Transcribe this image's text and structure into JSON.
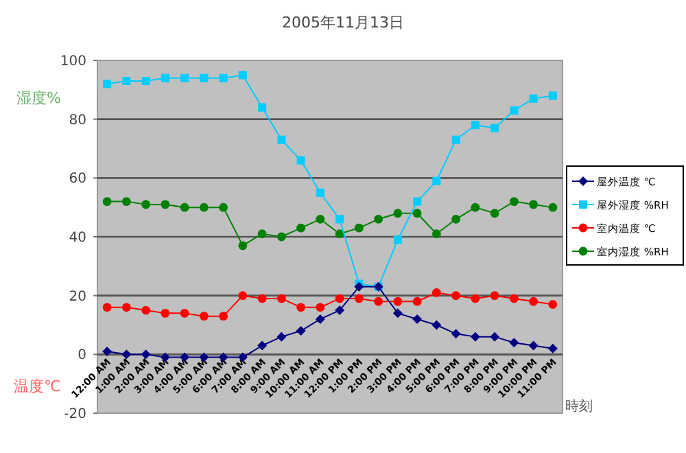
{
  "chart_data": {
    "type": "line",
    "title": "2005年11月13日",
    "xlabel": "時刻",
    "ylabel": "温度℃",
    "annotations": [
      "湿度%"
    ],
    "categories": [
      "12:00 AM",
      "1:00 AM",
      "2:00 AM",
      "3:00 AM",
      "4:00 AM",
      "5:00 AM",
      "6:00 AM",
      "7:00 AM",
      "8:00 AM",
      "9:00 AM",
      "10:00 AM",
      "11:00 AM",
      "12:00 PM",
      "1:00 PM",
      "2:00 PM",
      "3:00 PM",
      "4:00 PM",
      "5:00 PM",
      "6:00 PM",
      "7:00 PM",
      "8:00 PM",
      "9:00 PM",
      "10:00 PM",
      "11:00 PM"
    ],
    "series": [
      {
        "name": "屋外温度 ℃",
        "color": "#000080",
        "marker": "diamond",
        "values": [
          1,
          0,
          0,
          -1,
          -1,
          -1,
          -1,
          -1,
          3,
          6,
          8,
          12,
          15,
          23,
          23,
          14,
          12,
          10,
          7,
          6,
          6,
          4,
          3,
          2
        ]
      },
      {
        "name": "屋外湿度 %RH",
        "color": "#00ccff",
        "marker": "square",
        "values": [
          92,
          93,
          93,
          94,
          94,
          94,
          94,
          95,
          84,
          73,
          66,
          55,
          46,
          24,
          23,
          39,
          52,
          59,
          73,
          78,
          77,
          83,
          87,
          88
        ]
      },
      {
        "name": "室内温度 ℃",
        "color": "#ff0000",
        "marker": "circle",
        "values": [
          16,
          16,
          15,
          14,
          14,
          13,
          13,
          20,
          19,
          19,
          16,
          16,
          19,
          19,
          18,
          18,
          18,
          21,
          20,
          19,
          20,
          19,
          18,
          17
        ]
      },
      {
        "name": "室内湿度 %RH",
        "color": "#008000",
        "marker": "circle",
        "values": [
          52,
          52,
          51,
          51,
          50,
          50,
          50,
          37,
          41,
          40,
          43,
          46,
          41,
          43,
          46,
          48,
          48,
          41,
          46,
          50,
          48,
          52,
          51,
          50
        ]
      }
    ],
    "ylim": [
      -20,
      100
    ],
    "yticks": [
      -20,
      0,
      20,
      40,
      60,
      80,
      100
    ],
    "grid": "y",
    "legend": "right"
  }
}
